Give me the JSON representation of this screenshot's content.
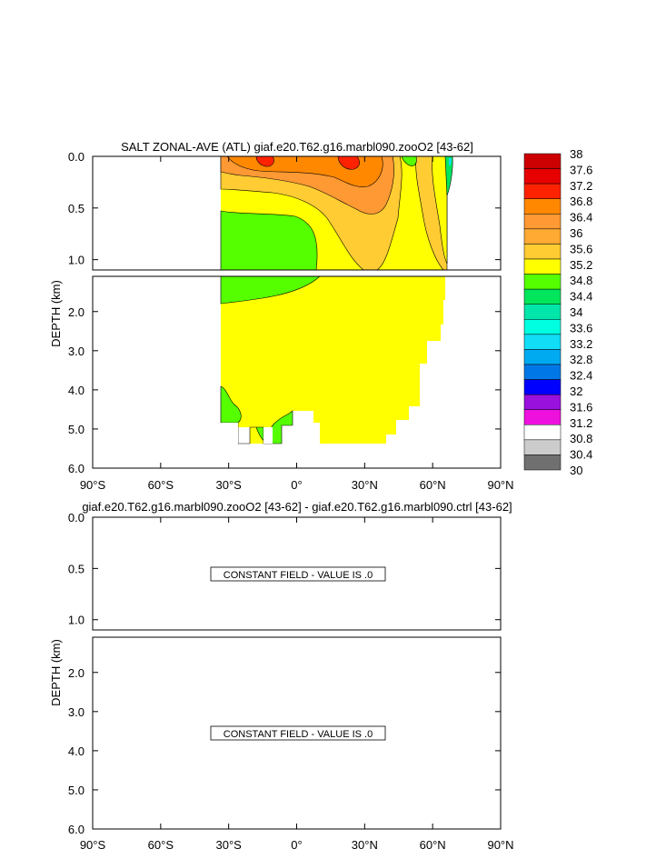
{
  "colors": {
    "band_cool": "#55ff00",
    "band_mid": "#ffff00",
    "band_warm_a": "#ffcc33",
    "band_warm_b": "#ff9933",
    "band_hot_a": "#ff8800",
    "band_hot_b": "#ff0000",
    "band_hot_c": "#cc0000",
    "panel_border": "#000000"
  },
  "chart_data": [
    {
      "type": "heatmap",
      "title": "SALT ZONAL-AVE (ATL) giaf.e20.T62.g16.marbl090.zooO2 [43-62]",
      "ylabel": "DEPTH (km)",
      "xlim": [
        -90,
        90
      ],
      "ylim_upper": [
        0.0,
        1.1
      ],
      "ylim_lower": [
        1.1,
        6.0
      ],
      "x_ticks": [
        "90°S",
        "60°S",
        "30°S",
        "0°",
        "30°N",
        "60°N",
        "90°N"
      ],
      "y_ticks_upper": [
        "0.0",
        "0.5",
        "1.0"
      ],
      "y_ticks_lower": [
        "2.0",
        "3.0",
        "4.0",
        "5.0",
        "6.0"
      ],
      "colorbar": {
        "levels": [
          "38",
          "37.6",
          "37.2",
          "36.8",
          "36.4",
          "36",
          "35.6",
          "35.2",
          "34.8",
          "34.4",
          "34",
          "33.6",
          "33.2",
          "32.8",
          "32.4",
          "32",
          "31.6",
          "31.2",
          "30.8",
          "30.4",
          "30"
        ],
        "colors": [
          "#cc0000",
          "#e60000",
          "#ff2200",
          "#ff8800",
          "#ff9933",
          "#ffaa33",
          "#ffcc33",
          "#ffff00",
          "#55ff00",
          "#00e65c",
          "#00e6aa",
          "#00ffe0",
          "#11ddf7",
          "#00aaf0",
          "#0077e6",
          "#0000ff",
          "#9911dd",
          "#ee11dd",
          "#ffffff",
          "#cccccc",
          "#707070"
        ]
      }
    },
    {
      "type": "heatmap",
      "title": "giaf.e20.T62.g16.marbl090.zooO2 [43-62] - giaf.e20.T62.g16.marbl090.ctrl [43-62]",
      "ylabel": "DEPTH (km)",
      "xlim": [
        -90,
        90
      ],
      "ylim_upper": [
        0.0,
        1.1
      ],
      "ylim_lower": [
        1.1,
        6.0
      ],
      "x_ticks": [
        "90°S",
        "60°S",
        "30°S",
        "0°",
        "30°N",
        "60°N",
        "90°N"
      ],
      "y_ticks_upper": [
        "0.0",
        "0.5",
        "1.0"
      ],
      "y_ticks_lower": [
        "2.0",
        "3.0",
        "4.0",
        "5.0",
        "6.0"
      ],
      "annotation": "CONSTANT FIELD - VALUE IS .0"
    }
  ]
}
